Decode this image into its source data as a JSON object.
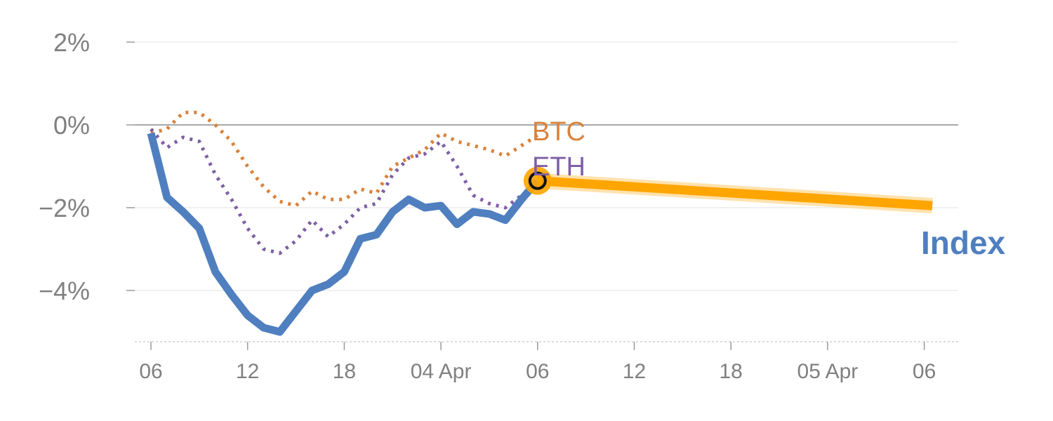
{
  "chart_data": {
    "type": "line",
    "unit": "%",
    "y_ticks": [
      {
        "value": 2,
        "label": "2%"
      },
      {
        "value": 0,
        "label": "0%"
      },
      {
        "value": -2,
        "label": "−2%"
      },
      {
        "value": -4,
        "label": "−4%"
      }
    ],
    "x_ticks": [
      {
        "hour": 6,
        "label": "06"
      },
      {
        "hour": 12,
        "label": "12"
      },
      {
        "hour": 18,
        "label": "18"
      },
      {
        "hour": 24,
        "label": "04 Apr"
      },
      {
        "hour": 30,
        "label": "06"
      },
      {
        "hour": 36,
        "label": "12"
      },
      {
        "hour": 42,
        "label": "18"
      },
      {
        "hour": 48,
        "label": "05 Apr"
      },
      {
        "hour": 54,
        "label": "06"
      }
    ],
    "xlim_hours": [
      5,
      56
    ],
    "ylim": [
      -5.2,
      2.4
    ],
    "grid": true,
    "series": [
      {
        "name": "BTC",
        "style": "dotted",
        "color": "#d9823b",
        "points": [
          [
            6,
            -0.2
          ],
          [
            7,
            -0.1
          ],
          [
            8,
            0.3
          ],
          [
            9,
            0.3
          ],
          [
            10,
            0.0
          ],
          [
            11,
            -0.4
          ],
          [
            12,
            -1.0
          ],
          [
            13,
            -1.5
          ],
          [
            14,
            -1.85
          ],
          [
            15,
            -1.95
          ],
          [
            16,
            -1.6
          ],
          [
            17,
            -1.8
          ],
          [
            18,
            -1.8
          ],
          [
            19,
            -1.55
          ],
          [
            20,
            -1.65
          ],
          [
            21,
            -1.0
          ],
          [
            22,
            -0.8
          ],
          [
            23,
            -0.6
          ],
          [
            24,
            -0.2
          ],
          [
            25,
            -0.4
          ],
          [
            26,
            -0.5
          ],
          [
            27,
            -0.6
          ],
          [
            28,
            -0.75
          ],
          [
            29,
            -0.5
          ],
          [
            30,
            -0.25
          ]
        ]
      },
      {
        "name": "ETH",
        "style": "dotted",
        "color": "#7e5fa5",
        "points": [
          [
            6,
            -0.1
          ],
          [
            7,
            -0.55
          ],
          [
            8,
            -0.3
          ],
          [
            9,
            -0.4
          ],
          [
            10,
            -1.2
          ],
          [
            11,
            -1.8
          ],
          [
            12,
            -2.5
          ],
          [
            13,
            -3.0
          ],
          [
            14,
            -3.1
          ],
          [
            15,
            -2.8
          ],
          [
            16,
            -2.3
          ],
          [
            17,
            -2.7
          ],
          [
            18,
            -2.4
          ],
          [
            19,
            -2.0
          ],
          [
            20,
            -1.9
          ],
          [
            21,
            -1.2
          ],
          [
            22,
            -0.8
          ],
          [
            23,
            -0.7
          ],
          [
            24,
            -0.4
          ],
          [
            25,
            -1.0
          ],
          [
            26,
            -1.7
          ],
          [
            27,
            -1.9
          ],
          [
            28,
            -2.0
          ],
          [
            29,
            -1.7
          ],
          [
            30,
            -1.4
          ]
        ]
      },
      {
        "name": "Index",
        "style": "solid",
        "color": "#4f7fbf",
        "points": [
          [
            6,
            -0.2
          ],
          [
            7,
            -1.75
          ],
          [
            8,
            -2.1
          ],
          [
            9,
            -2.5
          ],
          [
            10,
            -3.55
          ],
          [
            11,
            -4.1
          ],
          [
            12,
            -4.6
          ],
          [
            13,
            -4.9
          ],
          [
            14,
            -5.0
          ],
          [
            15,
            -4.5
          ],
          [
            16,
            -4.0
          ],
          [
            17,
            -3.85
          ],
          [
            18,
            -3.55
          ],
          [
            19,
            -2.75
          ],
          [
            20,
            -2.65
          ],
          [
            21,
            -2.1
          ],
          [
            22,
            -1.8
          ],
          [
            23,
            -2.0
          ],
          [
            24,
            -1.95
          ],
          [
            25,
            -2.4
          ],
          [
            26,
            -2.1
          ],
          [
            27,
            -2.15
          ],
          [
            28,
            -2.3
          ],
          [
            29,
            -1.8
          ],
          [
            30,
            -1.35
          ]
        ]
      },
      {
        "name": "Index forecast",
        "style": "solid",
        "color": "#ffa500",
        "points": [
          [
            30,
            -1.35
          ],
          [
            54.5,
            -1.95
          ]
        ]
      }
    ],
    "marker": {
      "hour": 30,
      "value": -1.35
    },
    "labels": {
      "btc": "BTC",
      "eth": "ETH",
      "index": "Index"
    }
  }
}
